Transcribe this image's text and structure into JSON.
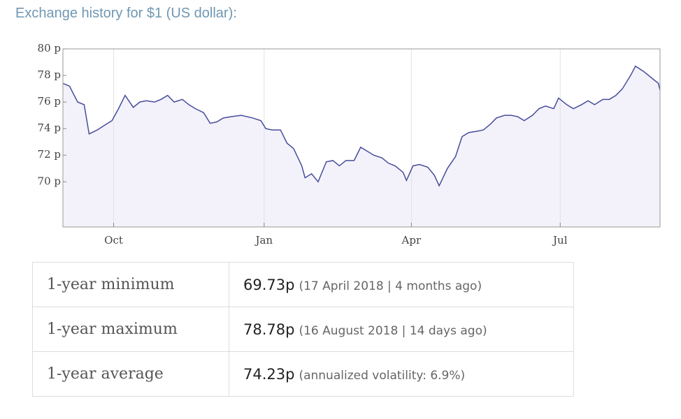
{
  "heading": "Exchange history for $1 (US dollar):",
  "chart_data": {
    "type": "line",
    "x": [
      0,
      4,
      9,
      13,
      16,
      21,
      26,
      30,
      34,
      38,
      43,
      47,
      51,
      56,
      60,
      64,
      68,
      73,
      77,
      81,
      86,
      90,
      94,
      98,
      103,
      109,
      116,
      121,
      124,
      128,
      133,
      137,
      141,
      146,
      148,
      152,
      156,
      161,
      165,
      169,
      173,
      178,
      182,
      186,
      190,
      195,
      199,
      203,
      208,
      210,
      214,
      218,
      223,
      227,
      230,
      235,
      240,
      244,
      248,
      253,
      257,
      261,
      265,
      270,
      274,
      278,
      282,
      287,
      291,
      295,
      300,
      303,
      308,
      312,
      317,
      321,
      325,
      330,
      334,
      338,
      342,
      347,
      350,
      355,
      360,
      364,
      365
    ],
    "series": [
      {
        "color": "#474c9b",
        "values": [
          77.4,
          77.2,
          76.0,
          75.8,
          73.6,
          73.9,
          74.3,
          74.6,
          75.5,
          76.5,
          75.6,
          76.0,
          76.1,
          76.0,
          76.2,
          76.5,
          76.0,
          76.2,
          75.8,
          75.5,
          75.2,
          74.4,
          74.5,
          74.8,
          74.9,
          75.0,
          74.8,
          74.6,
          74.0,
          73.9,
          73.9,
          72.9,
          72.5,
          71.2,
          70.3,
          70.6,
          70.0,
          71.5,
          71.6,
          71.2,
          71.6,
          71.6,
          72.6,
          72.3,
          72.0,
          71.8,
          71.4,
          71.2,
          70.7,
          70.1,
          71.2,
          71.3,
          71.1,
          70.5,
          69.7,
          71.0,
          71.9,
          73.4,
          73.7,
          73.8,
          73.9,
          74.3,
          74.8,
          75.0,
          75.0,
          74.9,
          74.6,
          75.0,
          75.5,
          75.7,
          75.5,
          76.3,
          75.8,
          75.5,
          75.8,
          76.1,
          75.8,
          76.2,
          76.2,
          76.5,
          77.0,
          78.0,
          78.7,
          78.3,
          77.8,
          77.4,
          76.9
        ]
      }
    ],
    "xlim": [
      0,
      365
    ],
    "xticks": [
      {
        "value": 31,
        "label": "Oct"
      },
      {
        "value": 123,
        "label": "Jan"
      },
      {
        "value": 213,
        "label": "Apr"
      },
      {
        "value": 304,
        "label": "Jul"
      }
    ],
    "ylim": [
      66.6,
      80
    ],
    "yticks": [
      {
        "value": 70,
        "label": "70 p"
      },
      {
        "value": 72,
        "label": "72 p"
      },
      {
        "value": 74,
        "label": "74 p"
      },
      {
        "value": 76,
        "label": "76 p"
      },
      {
        "value": 78,
        "label": "78 p"
      },
      {
        "value": 80,
        "label": "80 p"
      }
    ],
    "grid": true
  },
  "table": {
    "rows": [
      [
        "1-year minimum",
        "69.73p",
        "(17 April 2018 | 4 months ago)"
      ],
      [
        "1-year maximum",
        "78.78p",
        "(16 August 2018 | 14 days ago)"
      ],
      [
        "1-year average",
        "74.23p",
        "(annualized volatility: 6.9%)"
      ]
    ]
  }
}
